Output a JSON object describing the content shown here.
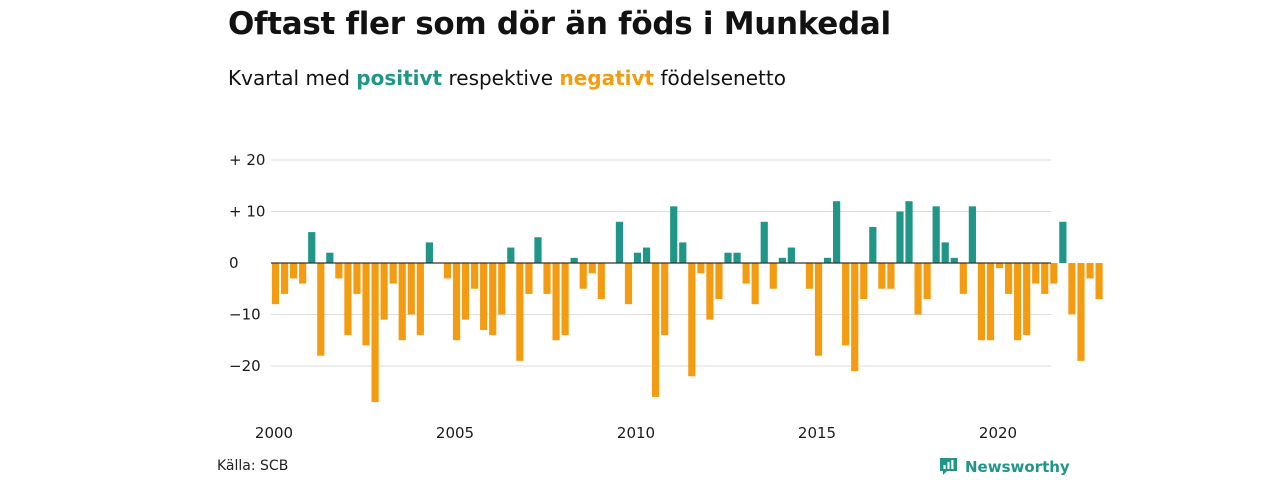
{
  "header": {
    "title": "Oftast fler som dör än föds i Munkedal",
    "subtitle_pre": "Kvartal med ",
    "subtitle_pos": "positivt",
    "subtitle_mid": " respektive ",
    "subtitle_neg": "negativt",
    "subtitle_post": " födelsenetto"
  },
  "footer": {
    "source": "Källa: SCB",
    "brand": "Newsworthy",
    "brand_icon": "newsworthy-logo-icon"
  },
  "colors": {
    "positive": "#1f9687",
    "negative": "#f39c12",
    "grid": "#dddddd",
    "zero_line": "#333333"
  },
  "chart_data": {
    "type": "bar",
    "title": "Oftast fler som dör än föds i Munkedal",
    "subtitle": "Kvartal med positivt respektive negativt födelsenetto",
    "xlabel": "",
    "ylabel": "",
    "x_start": "2000 Q1",
    "period": "quarter",
    "ylim": [
      -27,
      22
    ],
    "y_ticks": [
      20,
      10,
      0,
      -10,
      -20
    ],
    "y_tick_labels": [
      "+ 20",
      "+ 10",
      "0",
      "−10",
      "−20"
    ],
    "x_tick_labels": [
      "2000",
      "2005",
      "2010",
      "2015",
      "2020"
    ],
    "grid": true,
    "values": [
      -8,
      -6,
      -3,
      -4,
      6,
      -18,
      2,
      -3,
      -14,
      -6,
      -16,
      -27,
      -11,
      -4,
      -15,
      -10,
      -14,
      4,
      0,
      -3,
      -15,
      -11,
      -5,
      -13,
      -14,
      -10,
      3,
      -19,
      -6,
      5,
      -6,
      -15,
      -14,
      1,
      -5,
      -2,
      -7,
      0,
      8,
      -8,
      2,
      3,
      -26,
      -14,
      11,
      4,
      -22,
      -2,
      -11,
      -7,
      2,
      2,
      -4,
      -8,
      8,
      -5,
      1,
      3,
      0,
      -5,
      -18,
      1,
      12,
      -16,
      -21,
      -7,
      7,
      -5,
      -5,
      10,
      12,
      -10,
      -7,
      11,
      4,
      1,
      -6,
      11,
      -15,
      -15,
      -1,
      -6,
      -15,
      -14,
      -4,
      -6,
      -4,
      8,
      -10,
      -19,
      -3,
      -7
    ]
  }
}
